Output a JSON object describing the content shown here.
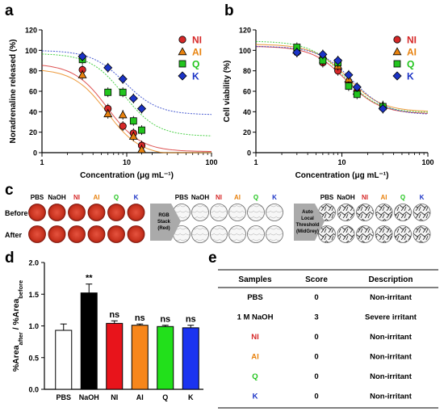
{
  "panel_letters": {
    "a": "a",
    "b": "b",
    "c": "c",
    "d": "d",
    "e": "e"
  },
  "colors": {
    "NI": "#d62828",
    "AI": "#e8820e",
    "Q": "#22c51e",
    "K": "#1b33c6"
  },
  "samples": [
    "NI",
    "AI",
    "Q",
    "K"
  ],
  "chart_data": [
    {
      "id": "a",
      "type": "scatter",
      "ylabel": "Noradrenaline released (%)",
      "xlabel": "Concentration (μg mL⁻¹)",
      "x_scale": "log",
      "xlim": [
        1,
        100
      ],
      "ylim": [
        0,
        120
      ],
      "x_ticks": [
        "1",
        "10",
        "100"
      ],
      "y_ticks": [
        "0",
        "20",
        "40",
        "60",
        "80",
        "100",
        "120"
      ],
      "legend": [
        "NI",
        "AI",
        "Q",
        "K"
      ],
      "series": [
        {
          "name": "NI",
          "x": [
            3,
            6,
            9,
            12,
            15
          ],
          "y": [
            81,
            43,
            26,
            19,
            7
          ]
        },
        {
          "name": "AI",
          "x": [
            3,
            6,
            9,
            12,
            15
          ],
          "y": [
            76,
            38,
            37,
            16,
            3
          ]
        },
        {
          "name": "Q",
          "x": [
            3,
            6,
            9,
            12,
            15
          ],
          "y": [
            91,
            59,
            59,
            31,
            22
          ]
        },
        {
          "name": "K",
          "x": [
            3,
            6,
            9,
            12,
            15
          ],
          "y": [
            94,
            83,
            72,
            53,
            43
          ]
        }
      ]
    },
    {
      "id": "b",
      "type": "scatter",
      "ylabel": "Cell viability (%)",
      "xlabel": "Concentration (μg mL⁻¹)",
      "x_scale": "log",
      "xlim": [
        1,
        100
      ],
      "ylim": [
        0,
        120
      ],
      "x_ticks": [
        "1",
        "10",
        "100"
      ],
      "y_ticks": [
        "0",
        "20",
        "40",
        "60",
        "80",
        "100",
        "120"
      ],
      "legend": [
        "NI",
        "AI",
        "Q",
        "K"
      ],
      "series": [
        {
          "name": "NI",
          "x": [
            3,
            6,
            9,
            12,
            15,
            30
          ],
          "y": [
            98,
            88,
            80,
            68,
            60,
            44
          ]
        },
        {
          "name": "AI",
          "x": [
            3,
            6,
            9,
            12,
            15,
            30
          ],
          "y": [
            100,
            95,
            85,
            72,
            60,
            46
          ]
        },
        {
          "name": "Q",
          "x": [
            3,
            6,
            9,
            12,
            15,
            30
          ],
          "y": [
            103,
            90,
            88,
            65,
            57,
            45
          ]
        },
        {
          "name": "K",
          "x": [
            3,
            6,
            9,
            12,
            15,
            30
          ],
          "y": [
            98,
            96,
            90,
            76,
            64,
            43
          ]
        }
      ]
    },
    {
      "id": "d",
      "type": "bar",
      "ylabel": "%Area_after / %Area_before",
      "categories": [
        "PBS",
        "NaOH",
        "NI",
        "AI",
        "Q",
        "K"
      ],
      "values": [
        0.93,
        1.52,
        1.04,
        1.01,
        0.99,
        0.97
      ],
      "errors": [
        0.1,
        0.14,
        0.04,
        0.02,
        0.02,
        0.04
      ],
      "bar_colors": [
        "#ffffff",
        "#000000",
        "#e8141b",
        "#f7861b",
        "#22e01b",
        "#1b33f0"
      ],
      "annotations": [
        "",
        "**",
        "ns",
        "ns",
        "ns",
        "ns"
      ],
      "ylim": [
        0,
        2.0
      ],
      "y_ticks": [
        "0.0",
        "0.5",
        "1.0",
        "1.5",
        "2.0"
      ]
    }
  ],
  "panel_c": {
    "row_labels": [
      "Before",
      "After"
    ],
    "group_labels": [
      "PBS",
      "NaOH",
      "NI",
      "AI",
      "Q",
      "K"
    ],
    "arrow1": [
      "RGB",
      "Stack",
      "(Red)"
    ],
    "arrow2": [
      "Auto",
      "Local",
      "Threshold",
      "(MidGrey)"
    ]
  },
  "panel_e": {
    "headers": [
      "Samples",
      "Score",
      "Description"
    ],
    "rows": [
      {
        "sample": "PBS",
        "score": "0",
        "description": "Non-irritant"
      },
      {
        "sample": "1 M NaOH",
        "score": "3",
        "description": "Severe irritant"
      },
      {
        "sample": "NI",
        "score": "0",
        "description": "Non-irritant"
      },
      {
        "sample": "AI",
        "score": "0",
        "description": "Non-irritant"
      },
      {
        "sample": "Q",
        "score": "0",
        "description": "Non-irritant"
      },
      {
        "sample": "K",
        "score": "0",
        "description": "Non-irritant"
      }
    ]
  }
}
